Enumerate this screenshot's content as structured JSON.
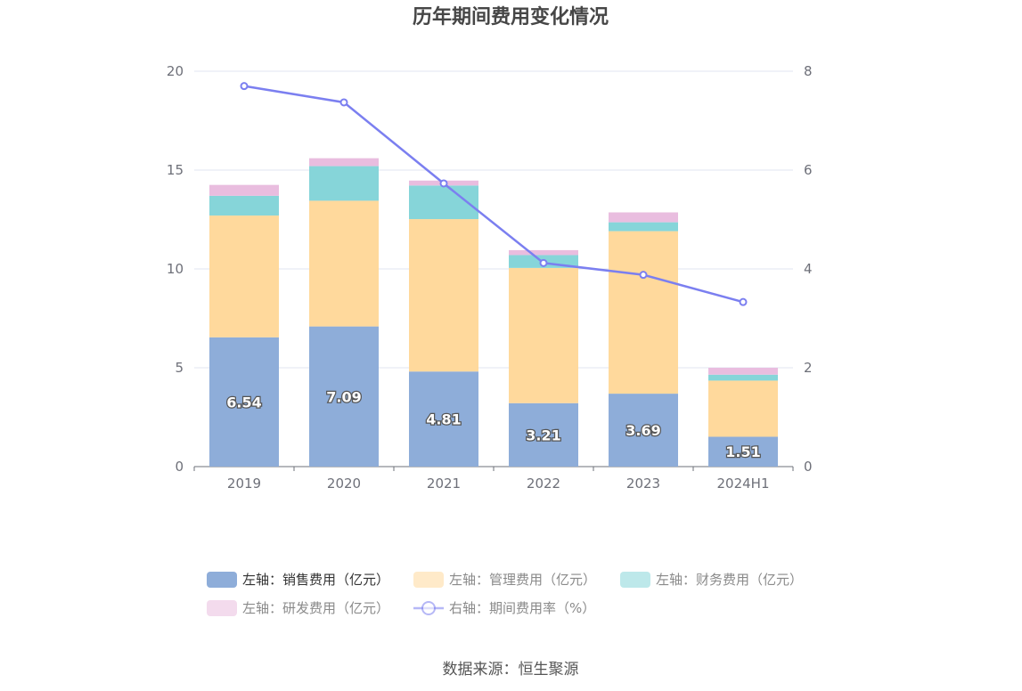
{
  "chart_data": {
    "type": "bar",
    "title": "历年期间费用变化情况",
    "categories": [
      "2019",
      "2020",
      "2021",
      "2022",
      "2023",
      "2024H1"
    ],
    "series": [
      {
        "name": "左轴：销售费用（亿元）",
        "axis": "left",
        "type": "bar",
        "stack": "total",
        "color": "#8eadd9",
        "values": [
          6.54,
          7.09,
          4.81,
          3.21,
          3.69,
          1.51
        ]
      },
      {
        "name": "左轴：管理费用（亿元）",
        "axis": "left",
        "type": "bar",
        "stack": "total",
        "color": "#ffd99c",
        "values": [
          6.16,
          6.36,
          7.71,
          6.84,
          8.22,
          2.84
        ]
      },
      {
        "name": "左轴：财务费用（亿元）",
        "axis": "left",
        "type": "bar",
        "stack": "total",
        "color": "#86d5d9",
        "values": [
          1.0,
          1.75,
          1.7,
          0.65,
          0.45,
          0.3
        ]
      },
      {
        "name": "左轴：研发费用（亿元）",
        "axis": "left",
        "type": "bar",
        "stack": "total",
        "color": "#e9bddf",
        "values": [
          0.55,
          0.4,
          0.25,
          0.25,
          0.5,
          0.35
        ]
      },
      {
        "name": "右轴：期间费用率（%）",
        "axis": "right",
        "type": "line",
        "color": "#7b7ff0",
        "values": [
          7.7,
          7.37,
          5.73,
          4.12,
          3.88,
          3.33
        ]
      }
    ],
    "y_left": {
      "range": [
        0,
        20
      ],
      "ticks": [
        "0",
        "5",
        "10",
        "15",
        "20"
      ]
    },
    "y_right": {
      "range": [
        0,
        8
      ],
      "ticks": [
        "0",
        "2",
        "4",
        "6",
        "8"
      ]
    },
    "bar_labels": [
      "6.54",
      "7.09",
      "4.81",
      "3.21",
      "3.69",
      "1.51"
    ],
    "grid": true,
    "legend_position": "bottom"
  },
  "source": "数据来源：恒生聚源"
}
